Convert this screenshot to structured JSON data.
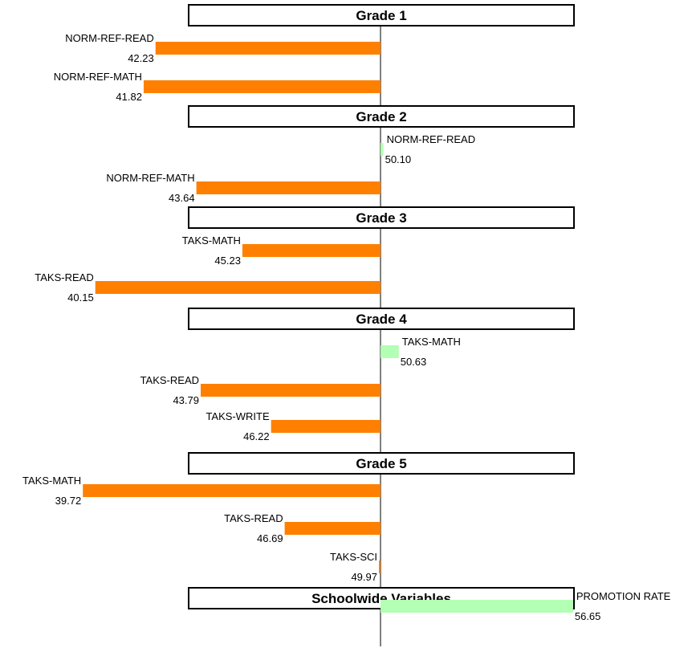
{
  "chart_data": {
    "type": "bar",
    "orientation": "horizontal",
    "baseline": 50,
    "colors": {
      "below": "#FF8000",
      "above": "#B3FFB3"
    },
    "groups": [
      {
        "title": "Grade 1",
        "items": [
          {
            "label": "NORM-REF-READ",
            "value": 42.23,
            "value_text": "42.23"
          },
          {
            "label": "NORM-REF-MATH",
            "value": 41.82,
            "value_text": "41.82"
          }
        ]
      },
      {
        "title": "Grade 2",
        "items": [
          {
            "label": "NORM-REF-READ",
            "value": 50.1,
            "value_text": "50.10"
          },
          {
            "label": "NORM-REF-MATH",
            "value": 43.64,
            "value_text": "43.64"
          }
        ]
      },
      {
        "title": "Grade 3",
        "items": [
          {
            "label": "TAKS-MATH",
            "value": 45.23,
            "value_text": "45.23"
          },
          {
            "label": "TAKS-READ",
            "value": 40.15,
            "value_text": "40.15"
          }
        ]
      },
      {
        "title": "Grade 4",
        "items": [
          {
            "label": "TAKS-MATH",
            "value": 50.63,
            "value_text": "50.63"
          },
          {
            "label": "TAKS-READ",
            "value": 43.79,
            "value_text": "43.79"
          },
          {
            "label": "TAKS-WRITE",
            "value": 46.22,
            "value_text": "46.22"
          }
        ]
      },
      {
        "title": "Grade 5",
        "items": [
          {
            "label": "TAKS-MATH",
            "value": 39.72,
            "value_text": "39.72"
          },
          {
            "label": "TAKS-READ",
            "value": 46.69,
            "value_text": "46.69"
          },
          {
            "label": "TAKS-SCI",
            "value": 49.97,
            "value_text": "49.97"
          }
        ]
      },
      {
        "title": "Schoolwide Variables",
        "items": [
          {
            "label": "PROMOTION RATE",
            "value": 56.65,
            "value_text": "56.65"
          }
        ]
      }
    ]
  }
}
